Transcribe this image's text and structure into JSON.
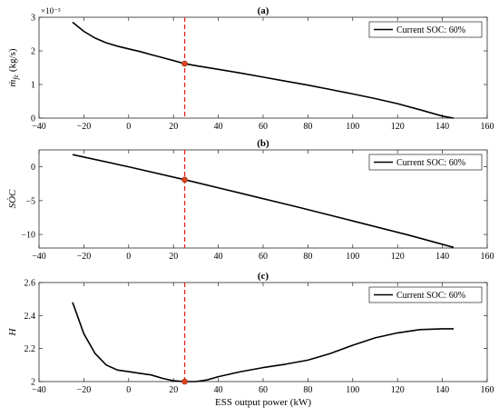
{
  "colors": {
    "series": "#000000",
    "marker_line": "#e8221b",
    "marker_point": "#e0451d",
    "axes": "#262626",
    "background": "#ffffff"
  },
  "chart_data": [
    {
      "id": "a",
      "type": "line",
      "title": "(a)",
      "ylabel": "ṁ_fc (kg/s)",
      "ylabel_main": "ṁ",
      "ylabel_sub": "fc",
      "ylabel_unit": " (kg/s)",
      "xlabel": "",
      "y_exponent": "×10⁻³",
      "xlim": [
        -40,
        160
      ],
      "ylim": [
        0,
        3
      ],
      "xticks": [
        -40,
        -20,
        0,
        20,
        40,
        60,
        80,
        100,
        120,
        140,
        160
      ],
      "yticks": [
        0,
        1,
        2,
        3
      ],
      "ytick_labels": [
        "0",
        "1",
        "2",
        "3"
      ],
      "grid": false,
      "legend_position": "top-right",
      "series": [
        {
          "name": "Current SOC: 60%",
          "x": [
            -25,
            -20,
            -15,
            -10,
            -5,
            0,
            5,
            10,
            15,
            20,
            25,
            30,
            40,
            50,
            60,
            70,
            80,
            90,
            100,
            110,
            120,
            130,
            140,
            145
          ],
          "y": [
            2.85,
            2.58,
            2.38,
            2.24,
            2.14,
            2.06,
            1.98,
            1.89,
            1.8,
            1.71,
            1.62,
            1.56,
            1.45,
            1.34,
            1.22,
            1.1,
            0.98,
            0.85,
            0.72,
            0.58,
            0.43,
            0.25,
            0.06,
            0.0
          ]
        }
      ],
      "marker": {
        "x": 25,
        "y": 1.62
      },
      "reference_line_x": 25
    },
    {
      "id": "b",
      "type": "line",
      "title": "(b)",
      "ylabel": "SȮC",
      "xlabel": "",
      "xlim": [
        -40,
        160
      ],
      "ylim": [
        -12,
        2.5
      ],
      "xticks": [
        -40,
        -20,
        0,
        20,
        40,
        60,
        80,
        100,
        120,
        140,
        160
      ],
      "yticks": [
        -10,
        -5,
        0
      ],
      "ytick_labels": [
        "−10",
        "−5",
        "0"
      ],
      "grid": false,
      "legend_position": "top-right",
      "series": [
        {
          "name": "Current SOC: 60%",
          "x": [
            -25,
            0,
            25,
            50,
            75,
            100,
            125,
            145
          ],
          "y": [
            1.8,
            0.0,
            -1.9,
            -3.9,
            -5.9,
            -8.0,
            -10.1,
            -11.9
          ]
        }
      ],
      "marker": {
        "x": 25,
        "y": -1.9
      },
      "reference_line_x": 25
    },
    {
      "id": "c",
      "type": "line",
      "title": "(c)",
      "ylabel": "H",
      "xlabel": "ESS output power (kW)",
      "xlim": [
        -40,
        160
      ],
      "ylim": [
        2,
        2.6
      ],
      "xticks": [
        -40,
        -20,
        0,
        20,
        40,
        60,
        80,
        100,
        120,
        140,
        160
      ],
      "yticks": [
        2,
        2.2,
        2.4,
        2.6
      ],
      "ytick_labels": [
        "2",
        "2.2",
        "2.4",
        "2.6"
      ],
      "grid": false,
      "legend_position": "top-right",
      "series": [
        {
          "name": "Current SOC: 60%",
          "x": [
            -25,
            -20,
            -15,
            -10,
            -5,
            0,
            5,
            10,
            15,
            20,
            25,
            30,
            35,
            40,
            50,
            60,
            70,
            80,
            90,
            100,
            110,
            120,
            130,
            140,
            145
          ],
          "y": [
            2.48,
            2.29,
            2.17,
            2.1,
            2.07,
            2.06,
            2.05,
            2.04,
            2.02,
            2.005,
            2.0,
            2.0,
            2.01,
            2.03,
            2.06,
            2.085,
            2.105,
            2.13,
            2.17,
            2.22,
            2.265,
            2.295,
            2.315,
            2.32,
            2.32
          ]
        }
      ],
      "marker": {
        "x": 25,
        "y": 2.0
      },
      "reference_line_x": 25
    }
  ]
}
